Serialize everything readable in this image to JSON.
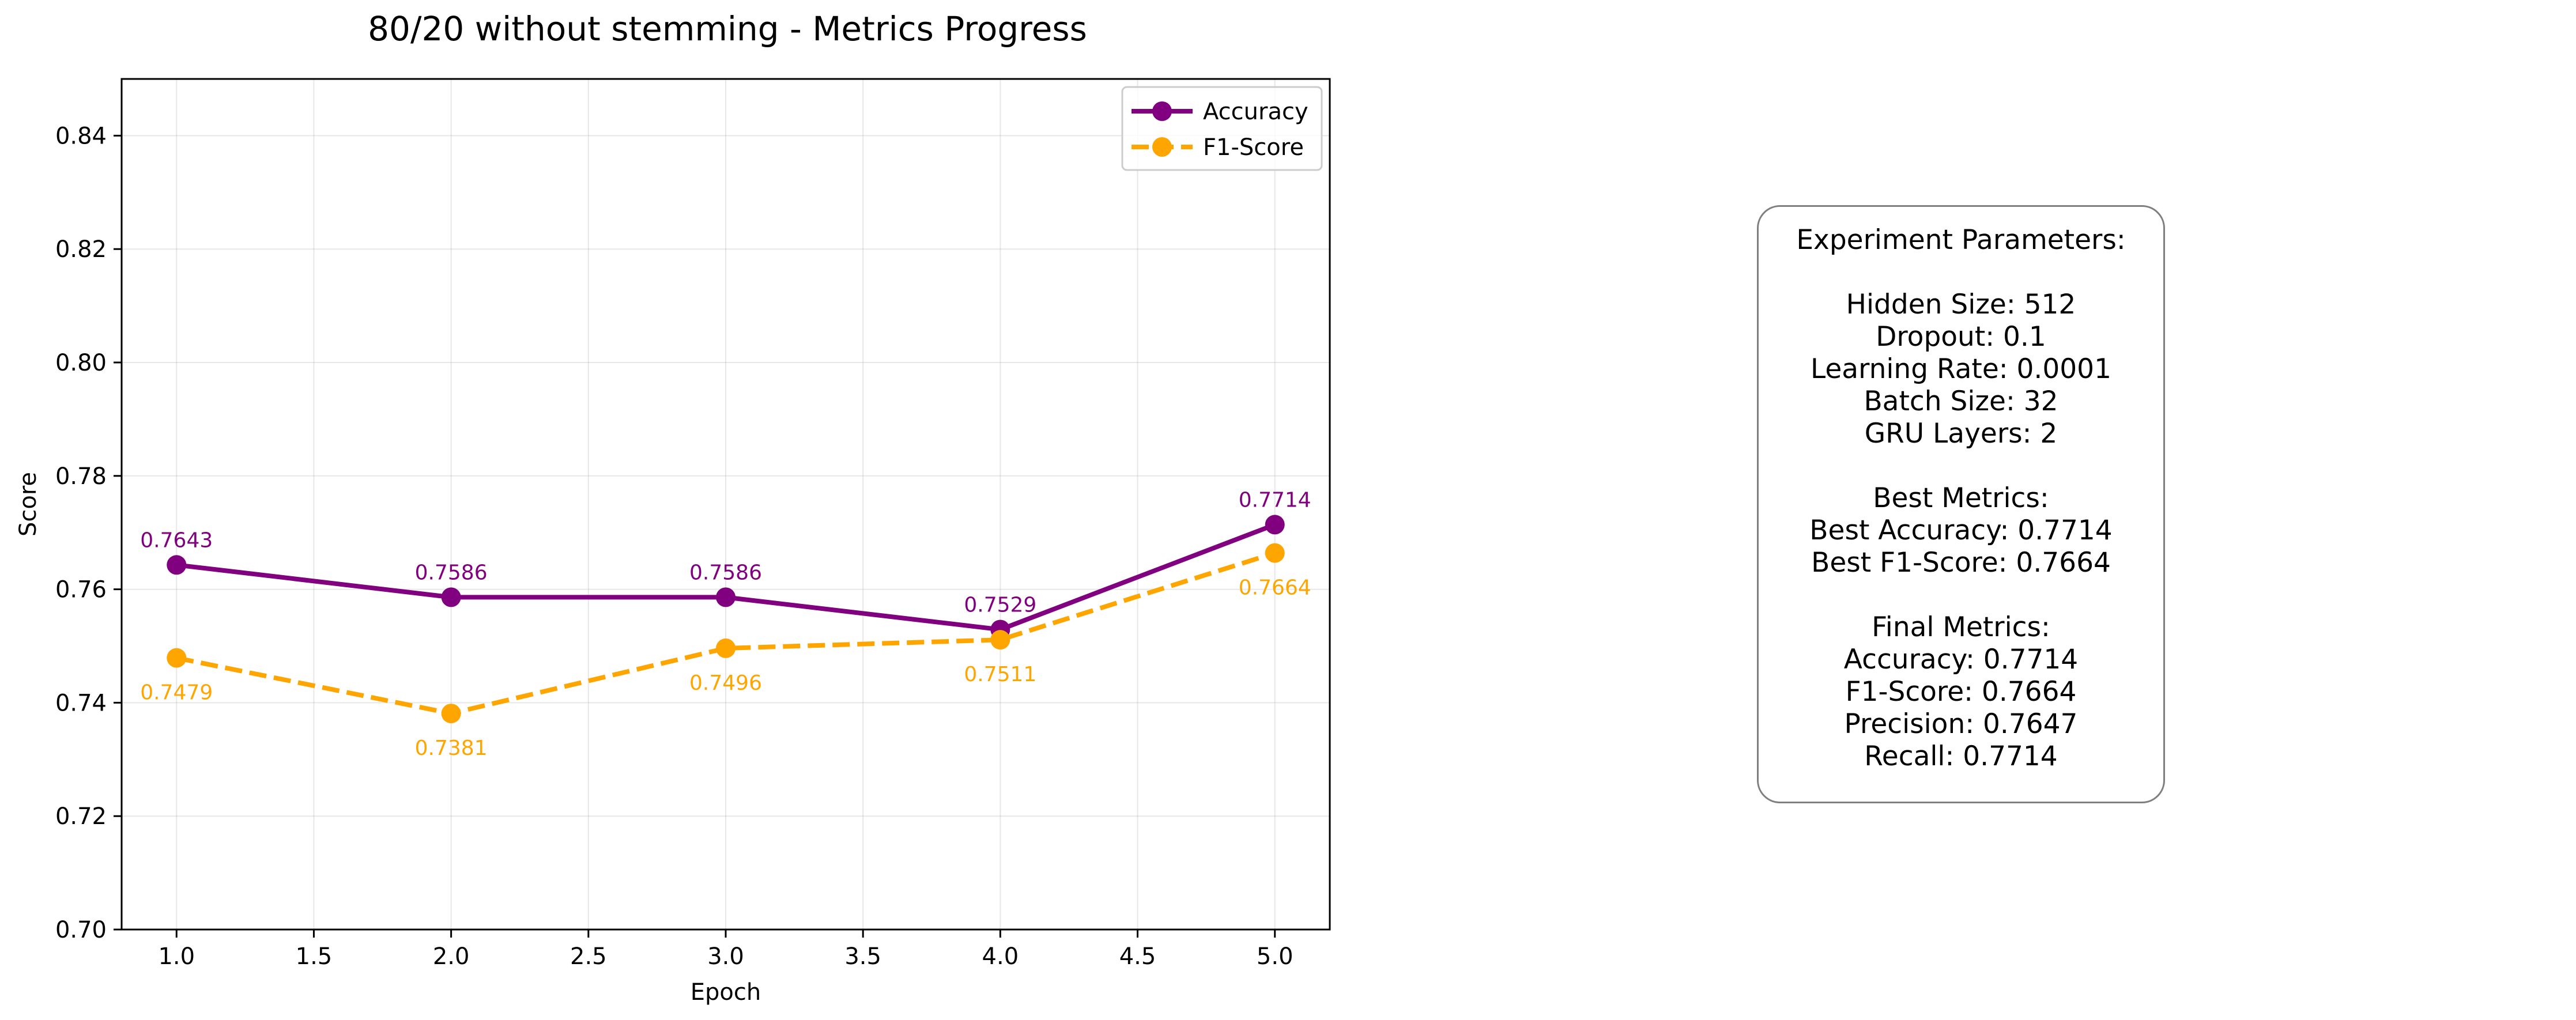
{
  "chart_data": {
    "type": "line",
    "title": "80/20 without stemming - Metrics Progress",
    "xlabel": "Epoch",
    "ylabel": "Score",
    "x": [
      1.0,
      2.0,
      3.0,
      4.0,
      5.0
    ],
    "xlim": [
      0.8,
      5.2
    ],
    "ylim": [
      0.7,
      0.85
    ],
    "xticks": [
      "1.0",
      "1.5",
      "2.0",
      "2.5",
      "3.0",
      "3.5",
      "4.0",
      "4.5",
      "5.0"
    ],
    "yticks": [
      "0.70",
      "0.72",
      "0.74",
      "0.76",
      "0.78",
      "0.80",
      "0.82",
      "0.84"
    ],
    "grid": true,
    "legend_position": "top-right",
    "series": [
      {
        "name": "Accuracy",
        "values": [
          0.7643,
          0.7586,
          0.7586,
          0.7529,
          0.7714
        ],
        "labels": [
          "0.7643",
          "0.7586",
          "0.7586",
          "0.7529",
          "0.7714"
        ],
        "color": "#800080",
        "line_style": "solid",
        "label_position": "above"
      },
      {
        "name": "F1-Score",
        "values": [
          0.7479,
          0.7381,
          0.7496,
          0.7511,
          0.7664
        ],
        "labels": [
          "0.7479",
          "0.7381",
          "0.7496",
          "0.7511",
          "0.7664"
        ],
        "color": "#FFA500",
        "line_style": "dashed",
        "label_position": "below"
      }
    ]
  },
  "params_box": {
    "header": "Experiment Parameters:",
    "hidden_size": "Hidden Size: 512",
    "dropout": "Dropout: 0.1",
    "learning_rate": "Learning Rate: 0.0001",
    "batch_size": "Batch Size: 32",
    "gru_layers": "GRU Layers: 2",
    "best_header": "Best Metrics:",
    "best_accuracy": "Best Accuracy: 0.7714",
    "best_f1": "Best F1-Score: 0.7664",
    "final_header": "Final Metrics:",
    "final_accuracy": "Accuracy: 0.7714",
    "final_f1": "F1-Score: 0.7664",
    "final_precision": "Precision: 0.7647",
    "final_recall": "Recall: 0.7714"
  }
}
